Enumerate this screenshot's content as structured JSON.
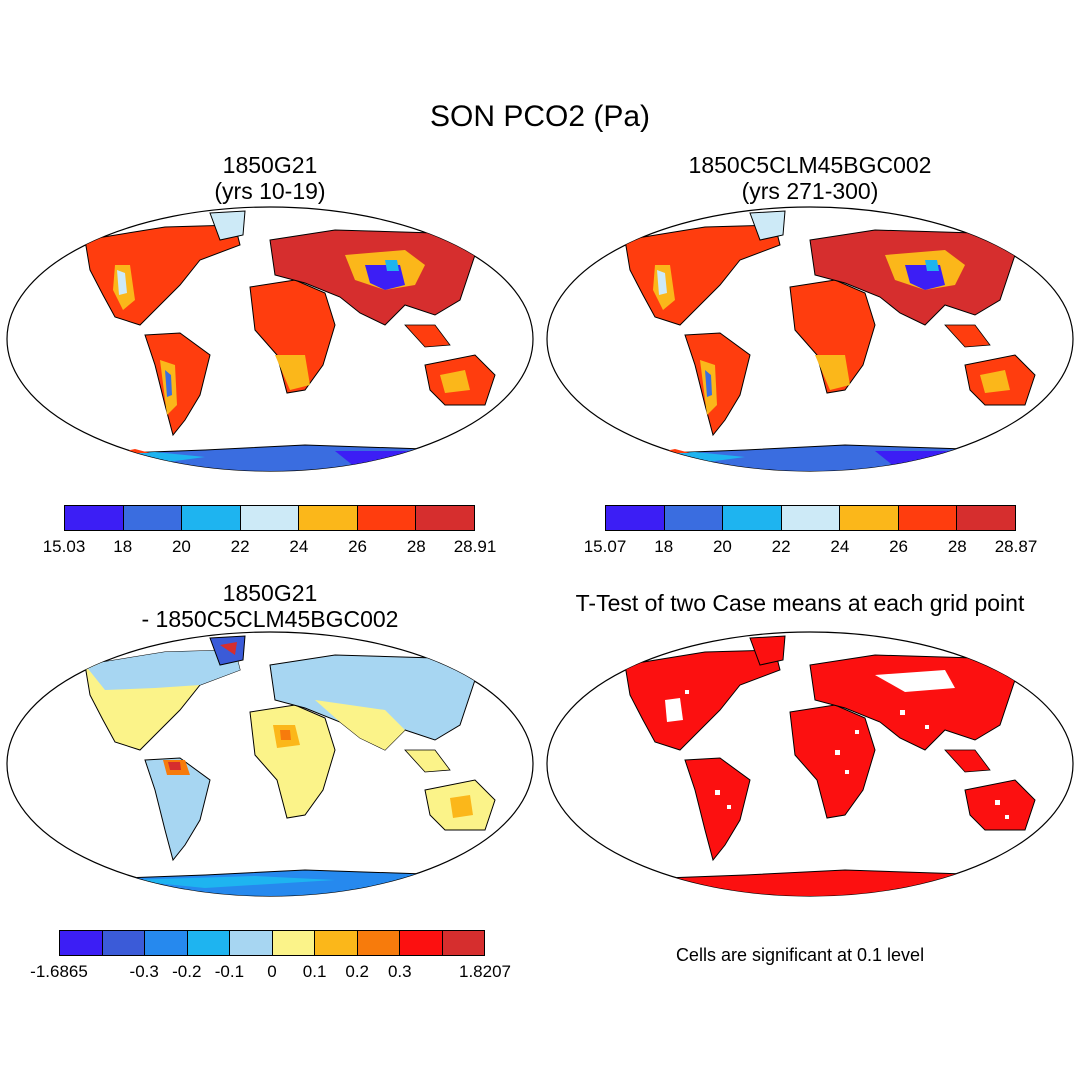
{
  "main_title": "SON PCO2 (Pa)",
  "panels": [
    {
      "id": "a",
      "title_line1": "1850G21",
      "title_line2": "(yrs 10-19)",
      "colorbar": {
        "colors": [
          "#3c1ef5",
          "#3a6de0",
          "#1eb4f0",
          "#cdeaf7",
          "#fbb71a",
          "#ff3d0e",
          "#d62e2e"
        ],
        "labels": [
          "15.03",
          "18",
          "20",
          "22",
          "24",
          "26",
          "28",
          "28.91"
        ]
      }
    },
    {
      "id": "b",
      "title_line1": "1850C5CLM45BGC002",
      "title_line2": "(yrs 271-300)",
      "colorbar": {
        "colors": [
          "#3c1ef5",
          "#3a6de0",
          "#1eb4f0",
          "#cdeaf7",
          "#fbb71a",
          "#ff3d0e",
          "#d62e2e"
        ],
        "labels": [
          "15.07",
          "18",
          "20",
          "22",
          "24",
          "26",
          "28",
          "28.87"
        ]
      }
    },
    {
      "id": "c",
      "title_line1": "1850G21",
      "title_line2": "- 1850C5CLM45BGC002",
      "colorbar": {
        "colors": [
          "#3c1ef5",
          "#3b5bd8",
          "#2689ee",
          "#1eb4f0",
          "#a7d6f2",
          "#fbf389",
          "#fbb71a",
          "#f77b0c",
          "#fc1010",
          "#d62e2e"
        ],
        "labels": [
          "-1.6865",
          "-0.3",
          "-0.2",
          "-0.1",
          "0",
          "0.1",
          "0.2",
          "0.3",
          "1.8207"
        ],
        "label_slots": [
          0,
          2,
          3,
          4,
          5,
          6,
          7,
          8,
          10
        ]
      }
    },
    {
      "id": "d",
      "title_line1": "T-Test of two Case means at each grid point",
      "note": "Cells are significant at 0.1 level"
    }
  ]
}
